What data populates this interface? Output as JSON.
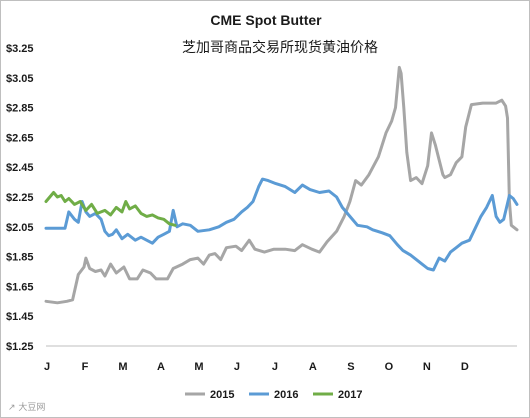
{
  "chart_data": {
    "type": "line",
    "title": "CME Spot Butter",
    "subtitle": "芝加哥商品交易所现货黄油价格",
    "ylim": [
      1.25,
      3.25
    ],
    "xlim": [
      0,
      12.4
    ],
    "y_ticks": [
      "$3.25",
      "$3.05",
      "$2.85",
      "$2.65",
      "$2.45",
      "$2.25",
      "$2.05",
      "$1.85",
      "$1.65",
      "$1.45",
      "$1.25"
    ],
    "y_tick_values": [
      3.25,
      3.05,
      2.85,
      2.65,
      2.45,
      2.25,
      2.05,
      1.85,
      1.65,
      1.45,
      1.25
    ],
    "x_ticks": [
      "J",
      "F",
      "M",
      "A",
      "M",
      "J",
      "J",
      "A",
      "S",
      "O",
      "N",
      "D"
    ],
    "legend_position": "bottom",
    "series": [
      {
        "name": "2015",
        "color": "#a6a6a6",
        "points": [
          [
            0,
            1.55
          ],
          [
            0.3,
            1.54
          ],
          [
            0.55,
            1.55
          ],
          [
            0.7,
            1.56
          ],
          [
            0.85,
            1.73
          ],
          [
            1.0,
            1.78
          ],
          [
            1.05,
            1.84
          ],
          [
            1.15,
            1.77
          ],
          [
            1.3,
            1.75
          ],
          [
            1.45,
            1.76
          ],
          [
            1.55,
            1.72
          ],
          [
            1.7,
            1.8
          ],
          [
            1.85,
            1.74
          ],
          [
            2.05,
            1.78
          ],
          [
            2.2,
            1.7
          ],
          [
            2.4,
            1.7
          ],
          [
            2.55,
            1.76
          ],
          [
            2.75,
            1.74
          ],
          [
            2.9,
            1.7
          ],
          [
            3.2,
            1.7
          ],
          [
            3.35,
            1.77
          ],
          [
            3.6,
            1.8
          ],
          [
            3.8,
            1.83
          ],
          [
            4.0,
            1.84
          ],
          [
            4.15,
            1.8
          ],
          [
            4.3,
            1.86
          ],
          [
            4.45,
            1.87
          ],
          [
            4.6,
            1.83
          ],
          [
            4.75,
            1.91
          ],
          [
            5.0,
            1.92
          ],
          [
            5.15,
            1.89
          ],
          [
            5.35,
            1.96
          ],
          [
            5.5,
            1.9
          ],
          [
            5.75,
            1.88
          ],
          [
            6.0,
            1.9
          ],
          [
            6.3,
            1.9
          ],
          [
            6.55,
            1.89
          ],
          [
            6.75,
            1.93
          ],
          [
            7.0,
            1.9
          ],
          [
            7.2,
            1.88
          ],
          [
            7.4,
            1.95
          ],
          [
            7.65,
            2.02
          ],
          [
            7.85,
            2.12
          ],
          [
            8.0,
            2.22
          ],
          [
            8.15,
            2.36
          ],
          [
            8.3,
            2.33
          ],
          [
            8.5,
            2.4
          ],
          [
            8.75,
            2.52
          ],
          [
            8.95,
            2.68
          ],
          [
            9.1,
            2.76
          ],
          [
            9.2,
            2.85
          ],
          [
            9.3,
            3.12
          ],
          [
            9.35,
            3.08
          ],
          [
            9.42,
            2.85
          ],
          [
            9.5,
            2.55
          ],
          [
            9.6,
            2.36
          ],
          [
            9.75,
            2.38
          ],
          [
            9.9,
            2.34
          ],
          [
            10.05,
            2.46
          ],
          [
            10.15,
            2.68
          ],
          [
            10.25,
            2.6
          ],
          [
            10.35,
            2.5
          ],
          [
            10.45,
            2.4
          ],
          [
            10.5,
            2.38
          ],
          [
            10.65,
            2.4
          ],
          [
            10.8,
            2.48
          ],
          [
            10.95,
            2.52
          ],
          [
            11.05,
            2.72
          ],
          [
            11.2,
            2.87
          ],
          [
            11.5,
            2.88
          ],
          [
            11.85,
            2.88
          ],
          [
            12.0,
            2.9
          ],
          [
            12.1,
            2.86
          ],
          [
            12.15,
            2.78
          ],
          [
            12.2,
            2.22
          ],
          [
            12.25,
            2.06
          ],
          [
            12.3,
            2.05
          ],
          [
            12.4,
            2.03
          ]
        ]
      },
      {
        "name": "2016",
        "color": "#5b9bd5",
        "points": [
          [
            0,
            2.04
          ],
          [
            0.35,
            2.04
          ],
          [
            0.5,
            2.04
          ],
          [
            0.6,
            2.15
          ],
          [
            0.75,
            2.1
          ],
          [
            0.85,
            2.08
          ],
          [
            0.95,
            2.22
          ],
          [
            1.05,
            2.15
          ],
          [
            1.15,
            2.12
          ],
          [
            1.3,
            2.14
          ],
          [
            1.45,
            2.1
          ],
          [
            1.55,
            2.02
          ],
          [
            1.65,
            1.99
          ],
          [
            1.75,
            2.0
          ],
          [
            1.85,
            2.03
          ],
          [
            2.0,
            1.97
          ],
          [
            2.15,
            2.0
          ],
          [
            2.35,
            1.96
          ],
          [
            2.5,
            1.98
          ],
          [
            2.65,
            1.96
          ],
          [
            2.8,
            1.94
          ],
          [
            2.95,
            1.98
          ],
          [
            3.1,
            2.0
          ],
          [
            3.25,
            2.02
          ],
          [
            3.35,
            2.16
          ],
          [
            3.45,
            2.05
          ],
          [
            3.6,
            2.07
          ],
          [
            3.8,
            2.06
          ],
          [
            4.0,
            2.02
          ],
          [
            4.3,
            2.03
          ],
          [
            4.55,
            2.05
          ],
          [
            4.75,
            2.08
          ],
          [
            4.95,
            2.1
          ],
          [
            5.15,
            2.15
          ],
          [
            5.3,
            2.18
          ],
          [
            5.45,
            2.22
          ],
          [
            5.6,
            2.32
          ],
          [
            5.7,
            2.37
          ],
          [
            5.85,
            2.36
          ],
          [
            6.05,
            2.34
          ],
          [
            6.3,
            2.32
          ],
          [
            6.55,
            2.28
          ],
          [
            6.75,
            2.33
          ],
          [
            6.95,
            2.3
          ],
          [
            7.2,
            2.28
          ],
          [
            7.45,
            2.29
          ],
          [
            7.65,
            2.25
          ],
          [
            7.8,
            2.18
          ],
          [
            8.0,
            2.12
          ],
          [
            8.2,
            2.06
          ],
          [
            8.45,
            2.05
          ],
          [
            8.6,
            2.03
          ],
          [
            8.85,
            2.01
          ],
          [
            9.05,
            1.99
          ],
          [
            9.25,
            1.93
          ],
          [
            9.4,
            1.89
          ],
          [
            9.6,
            1.86
          ],
          [
            9.75,
            1.83
          ],
          [
            9.9,
            1.8
          ],
          [
            10.05,
            1.77
          ],
          [
            10.2,
            1.76
          ],
          [
            10.35,
            1.84
          ],
          [
            10.5,
            1.82
          ],
          [
            10.65,
            1.88
          ],
          [
            10.8,
            1.91
          ],
          [
            10.95,
            1.94
          ],
          [
            11.15,
            1.96
          ],
          [
            11.3,
            2.04
          ],
          [
            11.45,
            2.12
          ],
          [
            11.6,
            2.18
          ],
          [
            11.75,
            2.26
          ],
          [
            11.85,
            2.12
          ],
          [
            11.95,
            2.08
          ],
          [
            12.05,
            2.1
          ],
          [
            12.2,
            2.26
          ],
          [
            12.3,
            2.24
          ],
          [
            12.4,
            2.2
          ]
        ]
      },
      {
        "name": "2017",
        "color": "#70ad47",
        "points": [
          [
            0,
            2.22
          ],
          [
            0.1,
            2.25
          ],
          [
            0.2,
            2.28
          ],
          [
            0.3,
            2.25
          ],
          [
            0.4,
            2.26
          ],
          [
            0.5,
            2.22
          ],
          [
            0.6,
            2.24
          ],
          [
            0.75,
            2.2
          ],
          [
            0.9,
            2.22
          ],
          [
            1.05,
            2.16
          ],
          [
            1.2,
            2.2
          ],
          [
            1.35,
            2.14
          ],
          [
            1.55,
            2.16
          ],
          [
            1.7,
            2.13
          ],
          [
            1.85,
            2.18
          ],
          [
            2.0,
            2.15
          ],
          [
            2.1,
            2.22
          ],
          [
            2.2,
            2.17
          ],
          [
            2.35,
            2.19
          ],
          [
            2.5,
            2.14
          ],
          [
            2.65,
            2.12
          ],
          [
            2.8,
            2.13
          ],
          [
            2.95,
            2.11
          ],
          [
            3.1,
            2.1
          ],
          [
            3.25,
            2.07
          ],
          [
            3.4,
            2.06
          ]
        ]
      }
    ],
    "watermark": "↗ 大豆网"
  }
}
